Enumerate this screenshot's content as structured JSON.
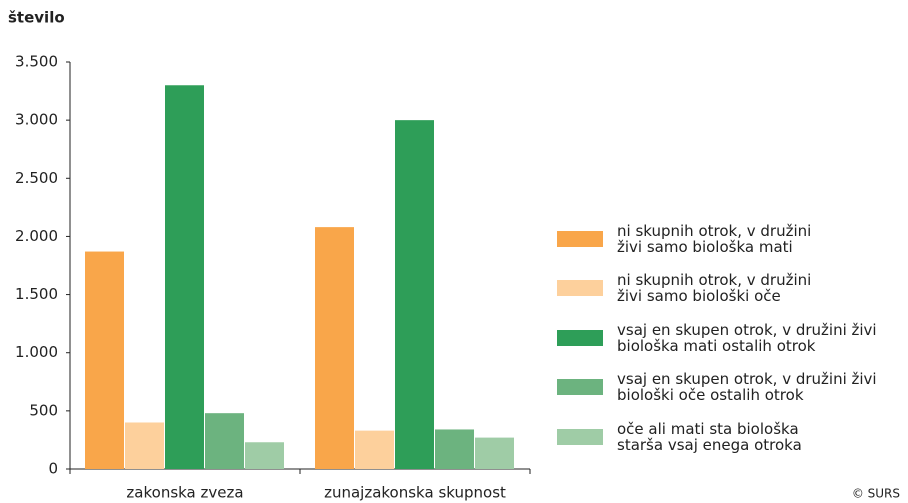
{
  "chart_data": {
    "type": "bar",
    "y_label": "število",
    "source": "© SURS",
    "categories": [
      "zakonska zveza",
      "zunajzakonska skupnost"
    ],
    "series": [
      {
        "name": "ni skupnih otrok, v družini\nživi samo biološka mati",
        "color": "#f9a64a",
        "values": [
          1870,
          2080
        ]
      },
      {
        "name": "ni skupnih otrok, v družini\nživi samo biološki oče",
        "color": "#fdd09c",
        "values": [
          400,
          330
        ]
      },
      {
        "name": "vsaj en skupen otrok, v družini živi\nbiološka mati ostalih otrok",
        "color": "#2e9e58",
        "values": [
          3300,
          3000
        ]
      },
      {
        "name": "vsaj en skupen otrok, v družini živi\nbiološki oče ostalih otrok",
        "color": "#6cb37f",
        "values": [
          480,
          340
        ]
      },
      {
        "name": "oče ali mati sta biološka\nstarša vsaj enega otroka",
        "color": "#9fcca6",
        "values": [
          230,
          270
        ]
      }
    ],
    "ylim": [
      0,
      3500
    ],
    "yticks": [
      0,
      500,
      {
        "value": 1000,
        "label": "1.000"
      },
      {
        "value": 1500,
        "label": "1.500"
      },
      {
        "value": 2000,
        "label": "2.000"
      },
      {
        "value": 2500,
        "label": "2.500"
      },
      {
        "value": 3000,
        "label": "3.000"
      },
      {
        "value": 3500,
        "label": "3.500"
      }
    ],
    "grid": false,
    "legend": "right"
  }
}
